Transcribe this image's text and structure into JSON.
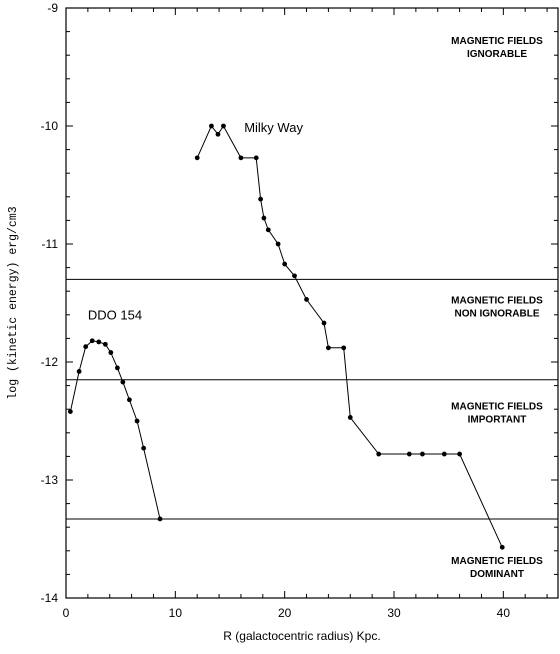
{
  "chart_data": {
    "type": "line",
    "xlabel": "R (galactocentric radius) Kpc.",
    "ylabel": "log (kinetic energy) erg/cm3",
    "xlim": [
      0,
      45
    ],
    "ylim": [
      -14,
      -9
    ],
    "x_ticks": [
      0,
      10,
      20,
      30,
      40
    ],
    "y_ticks": [
      -9,
      -10,
      -11,
      -12,
      -13,
      -14
    ],
    "grid": false,
    "series": [
      {
        "name": "Milky Way",
        "points": [
          [
            12.0,
            -10.27
          ],
          [
            13.3,
            -10.0
          ],
          [
            13.9,
            -10.07
          ],
          [
            14.4,
            -10.0
          ],
          [
            16.0,
            -10.27
          ],
          [
            17.4,
            -10.27
          ],
          [
            17.8,
            -10.62
          ],
          [
            18.1,
            -10.78
          ],
          [
            18.5,
            -10.88
          ],
          [
            19.4,
            -11.0
          ],
          [
            20.0,
            -11.17
          ],
          [
            20.9,
            -11.27
          ],
          [
            22.0,
            -11.47
          ],
          [
            23.6,
            -11.67
          ],
          [
            24.0,
            -11.88
          ],
          [
            25.4,
            -11.88
          ],
          [
            26.0,
            -12.47
          ],
          [
            28.6,
            -12.78
          ],
          [
            31.4,
            -12.78
          ],
          [
            32.6,
            -12.78
          ],
          [
            34.6,
            -12.78
          ],
          [
            36.0,
            -12.78
          ],
          [
            39.9,
            -13.57
          ]
        ]
      },
      {
        "name": "DDO 154",
        "points": [
          [
            0.4,
            -12.42
          ],
          [
            1.2,
            -12.08
          ],
          [
            1.8,
            -11.87
          ],
          [
            2.4,
            -11.82
          ],
          [
            3.0,
            -11.83
          ],
          [
            3.6,
            -11.85
          ],
          [
            4.1,
            -11.92
          ],
          [
            4.7,
            -12.05
          ],
          [
            5.2,
            -12.17
          ],
          [
            5.8,
            -12.32
          ],
          [
            6.5,
            -12.5
          ],
          [
            7.1,
            -12.73
          ],
          [
            8.6,
            -13.33
          ]
        ]
      }
    ],
    "thresholds": [
      -11.3,
      -12.15,
      -13.33
    ],
    "regions": [
      {
        "line1": "MAGNETIC FIELDS",
        "line2": "IGNORABLE",
        "y_center": -9.32
      },
      {
        "line1": "MAGNETIC FIELDS",
        "line2": "NON IGNORABLE",
        "y_center": -11.52
      },
      {
        "line1": "MAGNETIC FIELDS",
        "line2": "IMPORTANT",
        "y_center": -12.42
      },
      {
        "line1": "MAGNETIC FIELDS",
        "line2": "DOMINANT",
        "y_center": -13.73
      }
    ],
    "series_labels": [
      {
        "text": "Milky Way",
        "x": 16.3,
        "y": -10.05
      },
      {
        "text": "DDO 154",
        "x": 2.0,
        "y": -11.64
      }
    ]
  }
}
